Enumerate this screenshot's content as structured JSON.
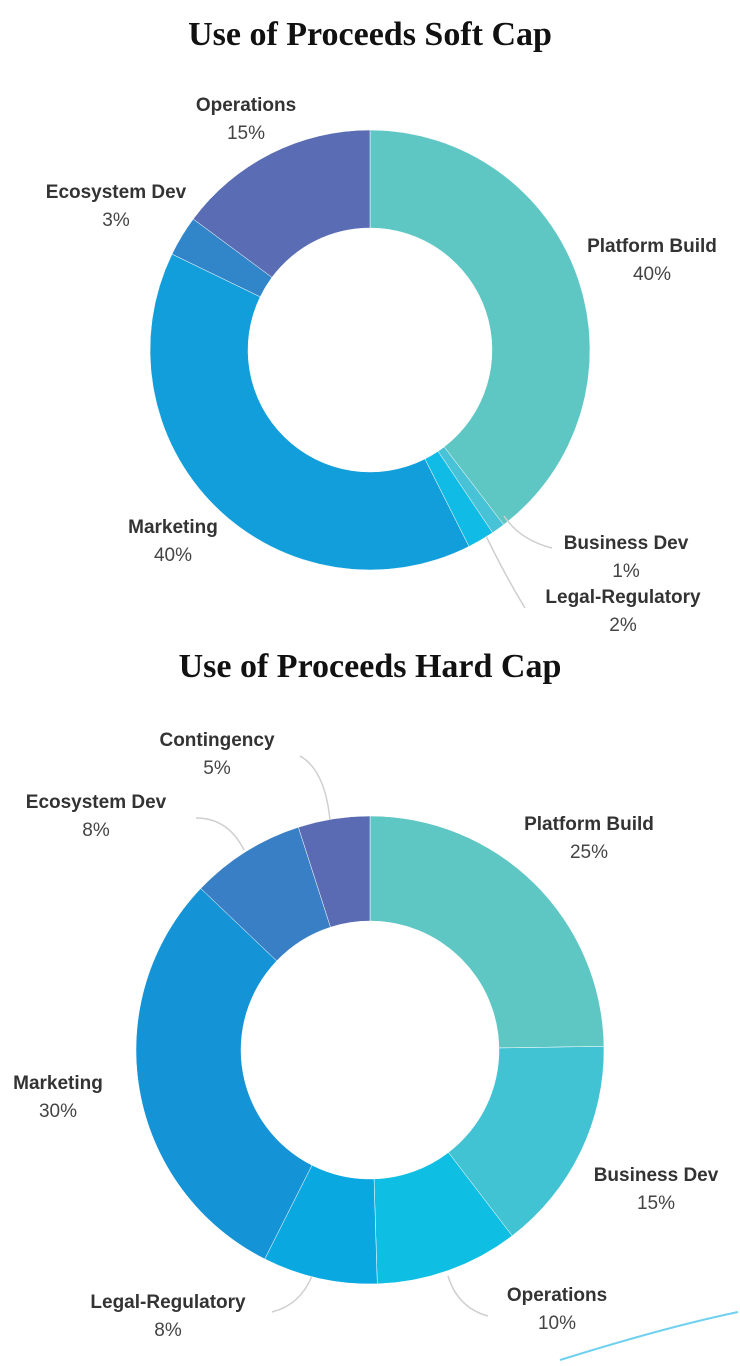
{
  "chart_data": [
    {
      "type": "pie",
      "title": "Use of Proceeds Soft Cap",
      "donut": true,
      "slices": [
        {
          "label": "Platform Build",
          "value": 40,
          "display": "40%",
          "color": "#5ec7c4"
        },
        {
          "label": "Business Dev",
          "value": 1,
          "display": "1%",
          "color": "#47c2d6"
        },
        {
          "label": "Legal-Regulatory",
          "value": 2,
          "display": "2%",
          "color": "#10bce6"
        },
        {
          "label": "Marketing",
          "value": 40,
          "display": "40%",
          "color": "#129edb"
        },
        {
          "label": "Ecosystem Dev",
          "value": 3,
          "display": "3%",
          "color": "#3185c9"
        },
        {
          "label": "Operations",
          "value": 15,
          "display": "15%",
          "color": "#5a6db4"
        }
      ]
    },
    {
      "type": "pie",
      "title": "Use of Proceeds Hard Cap",
      "donut": true,
      "slices": [
        {
          "label": "Platform Build",
          "value": 25,
          "display": "25%",
          "color": "#5ec7c4"
        },
        {
          "label": "Business Dev",
          "value": 15,
          "display": "15%",
          "color": "#42c3d4"
        },
        {
          "label": "Operations",
          "value": 10,
          "display": "10%",
          "color": "#0fbfe3"
        },
        {
          "label": "Legal-Regulatory",
          "value": 8,
          "display": "8%",
          "color": "#0aa8e0"
        },
        {
          "label": "Marketing",
          "value": 30,
          "display": "30%",
          "color": "#1493d6"
        },
        {
          "label": "Ecosystem Dev",
          "value": 8,
          "display": "8%",
          "color": "#387fc6"
        },
        {
          "label": "Contingency",
          "value": 5,
          "display": "5%",
          "color": "#5a6ab3"
        }
      ]
    }
  ]
}
